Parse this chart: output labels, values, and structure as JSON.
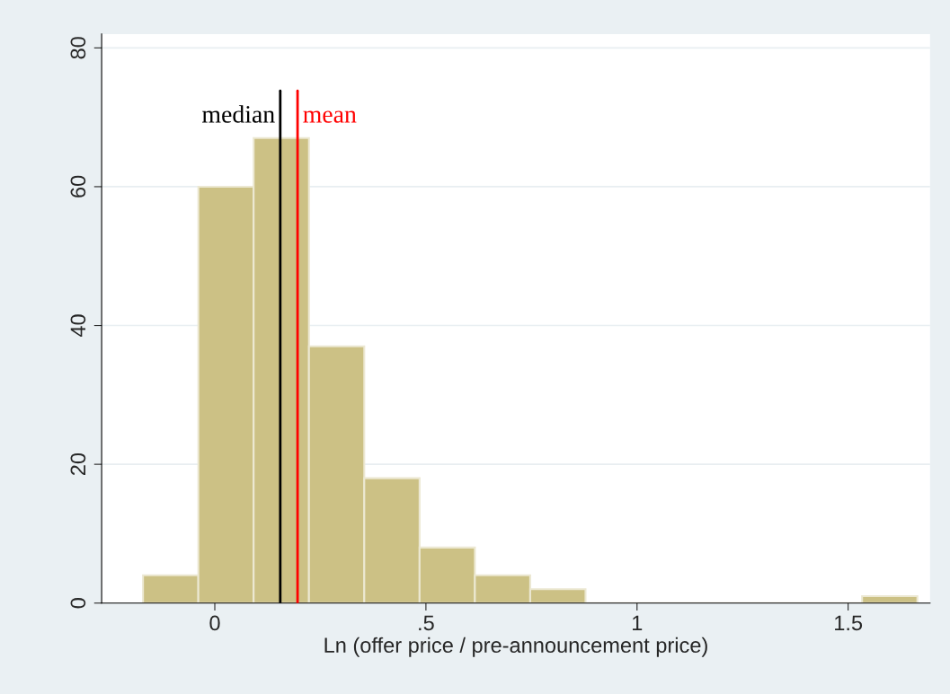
{
  "chart_data": {
    "type": "histogram",
    "xlabel": "Ln (offer price / pre-announcement price)",
    "bins": [
      -0.17,
      -0.039,
      0.092,
      0.223,
      0.354,
      0.485,
      0.616,
      0.747,
      0.878,
      1.009,
      1.14,
      1.271,
      1.402,
      1.533,
      1.664
    ],
    "values": [
      4,
      60,
      67,
      37,
      18,
      8,
      4,
      2,
      0,
      0,
      0,
      0,
      0,
      1
    ],
    "color": "#ccc185",
    "xlim": [
      -0.268,
      1.694
    ],
    "xticks": [
      0,
      {
        "value": 0.5,
        "label": ".5"
      },
      1,
      1.5
    ],
    "ylim": [
      0,
      82
    ],
    "yticks": [
      0,
      20,
      40,
      60,
      80
    ],
    "grid": "y",
    "ref_lines": [
      {
        "axis": "x",
        "value": 0.155,
        "label": "median",
        "color": "#000000"
      },
      {
        "axis": "x",
        "value": 0.196,
        "label": "mean",
        "color": "#ff0000"
      }
    ]
  }
}
